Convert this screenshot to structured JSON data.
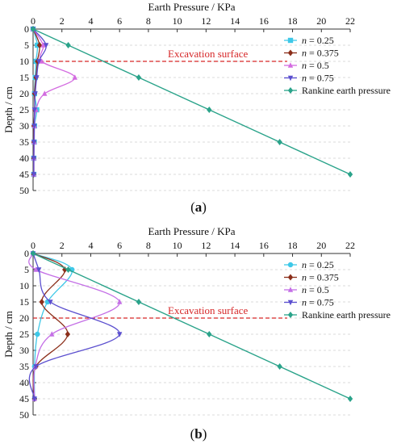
{
  "chart_data": [
    {
      "type": "line",
      "panel": "(a)",
      "panel_letter": "a",
      "title": "Earth Pressure / KPa",
      "xlabel": "Earth Pressure / KPa",
      "ylabel": "Depth / cm",
      "xlim": [
        0,
        22
      ],
      "ylim": [
        0,
        50
      ],
      "xticks": [
        0,
        2,
        4,
        6,
        8,
        10,
        12,
        14,
        16,
        18,
        20,
        22
      ],
      "yticks": [
        0,
        5,
        10,
        15,
        20,
        25,
        30,
        35,
        40,
        45,
        50
      ],
      "y_inverted": true,
      "x_axis_position": "top",
      "grid": "horizontal dashed",
      "legend_position": "top-right",
      "annotation": {
        "text": "Excavation surface",
        "depth": 10,
        "color": "#d62728"
      },
      "series": [
        {
          "name": "n = 0.25",
          "prefix": "n",
          "suffix": " = 0.25",
          "color": "#3ec8e8",
          "marker": "square",
          "points": [
            [
              0,
              0
            ],
            [
              0.3,
              5
            ],
            [
              0.2,
              10
            ],
            [
              0.15,
              15
            ],
            [
              0.1,
              20
            ],
            [
              0.25,
              25
            ],
            [
              0.1,
              30
            ],
            [
              0.08,
              35
            ],
            [
              0.05,
              40
            ],
            [
              0.05,
              45
            ]
          ]
        },
        {
          "name": "n = 0.375",
          "prefix": "n",
          "suffix": " = 0.375",
          "color": "#8b2e1a",
          "marker": "diamond",
          "points": [
            [
              0,
              0
            ],
            [
              0.45,
              5
            ],
            [
              0.3,
              10
            ],
            [
              0.2,
              15
            ],
            [
              0.1,
              20
            ],
            [
              0.12,
              25
            ],
            [
              0.05,
              30
            ],
            [
              0.05,
              35
            ],
            [
              0.04,
              40
            ],
            [
              0.04,
              45
            ]
          ]
        },
        {
          "name": "n = 0.5",
          "prefix": "n",
          "suffix": " = 0.5",
          "color": "#d36be0",
          "marker": "triangle-up",
          "points": [
            [
              0,
              0
            ],
            [
              0.7,
              5
            ],
            [
              0.6,
              10
            ],
            [
              2.9,
              15
            ],
            [
              0.8,
              20
            ],
            [
              0.2,
              25
            ],
            [
              0.1,
              30
            ],
            [
              0.08,
              35
            ],
            [
              0.06,
              40
            ],
            [
              0.06,
              45
            ]
          ]
        },
        {
          "name": "n = 0.75",
          "prefix": "n",
          "suffix": " = 0.75",
          "color": "#5b4fcf",
          "marker": "triangle-down",
          "points": [
            [
              0,
              0
            ],
            [
              0.9,
              5
            ],
            [
              0.4,
              10
            ],
            [
              0.25,
              15
            ],
            [
              0.15,
              20
            ],
            [
              0.1,
              25
            ],
            [
              0.08,
              30
            ],
            [
              0.06,
              35
            ],
            [
              0.05,
              40
            ],
            [
              0.05,
              45
            ]
          ]
        },
        {
          "name": "Rankine earth pressure",
          "color": "#2aa38a",
          "marker": "diamond",
          "points": [
            [
              0,
              0
            ],
            [
              2.44,
              5
            ],
            [
              7.33,
              15
            ],
            [
              12.22,
              25
            ],
            [
              17.11,
              35
            ],
            [
              22,
              45
            ]
          ]
        }
      ]
    },
    {
      "type": "line",
      "panel": "(b)",
      "panel_letter": "b",
      "title": "Earth Pressure / KPa",
      "xlabel": "Earth Pressure / KPa",
      "ylabel": "Depth / cm",
      "xlim": [
        0,
        22
      ],
      "ylim": [
        0,
        50
      ],
      "xticks": [
        0,
        2,
        4,
        6,
        8,
        10,
        12,
        14,
        16,
        18,
        20,
        22
      ],
      "yticks": [
        0,
        5,
        10,
        15,
        20,
        25,
        30,
        35,
        40,
        45,
        50
      ],
      "y_inverted": true,
      "x_axis_position": "top",
      "grid": "horizontal dashed",
      "legend_position": "top-right",
      "annotation": {
        "text": "Excavation surface",
        "depth": 20,
        "color": "#d62728"
      },
      "series": [
        {
          "name": "n = 0.25",
          "prefix": "n",
          "suffix": " = 0.25",
          "color": "#3ec8e8",
          "marker": "circle",
          "points": [
            [
              0,
              0
            ],
            [
              2.7,
              5
            ],
            [
              1.0,
              15
            ],
            [
              0.3,
              25
            ],
            [
              0.1,
              35
            ],
            [
              0.1,
              45
            ]
          ]
        },
        {
          "name": "n = 0.375",
          "prefix": "n",
          "suffix": " = 0.375",
          "color": "#8b2e1a",
          "marker": "diamond",
          "points": [
            [
              0,
              0
            ],
            [
              2.2,
              5
            ],
            [
              0.6,
              15
            ],
            [
              2.4,
              25
            ],
            [
              0.2,
              35
            ],
            [
              0.1,
              45
            ]
          ]
        },
        {
          "name": "n = 0.5",
          "prefix": "n",
          "suffix": " = 0.5",
          "color": "#c46fe6",
          "marker": "triangle-up",
          "points": [
            [
              0,
              0
            ],
            [
              0.2,
              5
            ],
            [
              6.0,
              15
            ],
            [
              1.3,
              25
            ],
            [
              0.15,
              35
            ],
            [
              0.1,
              45
            ]
          ]
        },
        {
          "name": "n = 0.75",
          "prefix": "n",
          "suffix": " = 0.75",
          "color": "#5b4fcf",
          "marker": "triangle-down",
          "points": [
            [
              0,
              0
            ],
            [
              0.4,
              5
            ],
            [
              1.2,
              15
            ],
            [
              6.0,
              25
            ],
            [
              0.2,
              35
            ],
            [
              0.1,
              45
            ]
          ]
        },
        {
          "name": "Rankine earth pressure",
          "color": "#2aa38a",
          "marker": "diamond",
          "points": [
            [
              0,
              0
            ],
            [
              2.44,
              5
            ],
            [
              7.33,
              15
            ],
            [
              12.22,
              25
            ],
            [
              17.11,
              35
            ],
            [
              22,
              45
            ]
          ]
        }
      ]
    }
  ]
}
